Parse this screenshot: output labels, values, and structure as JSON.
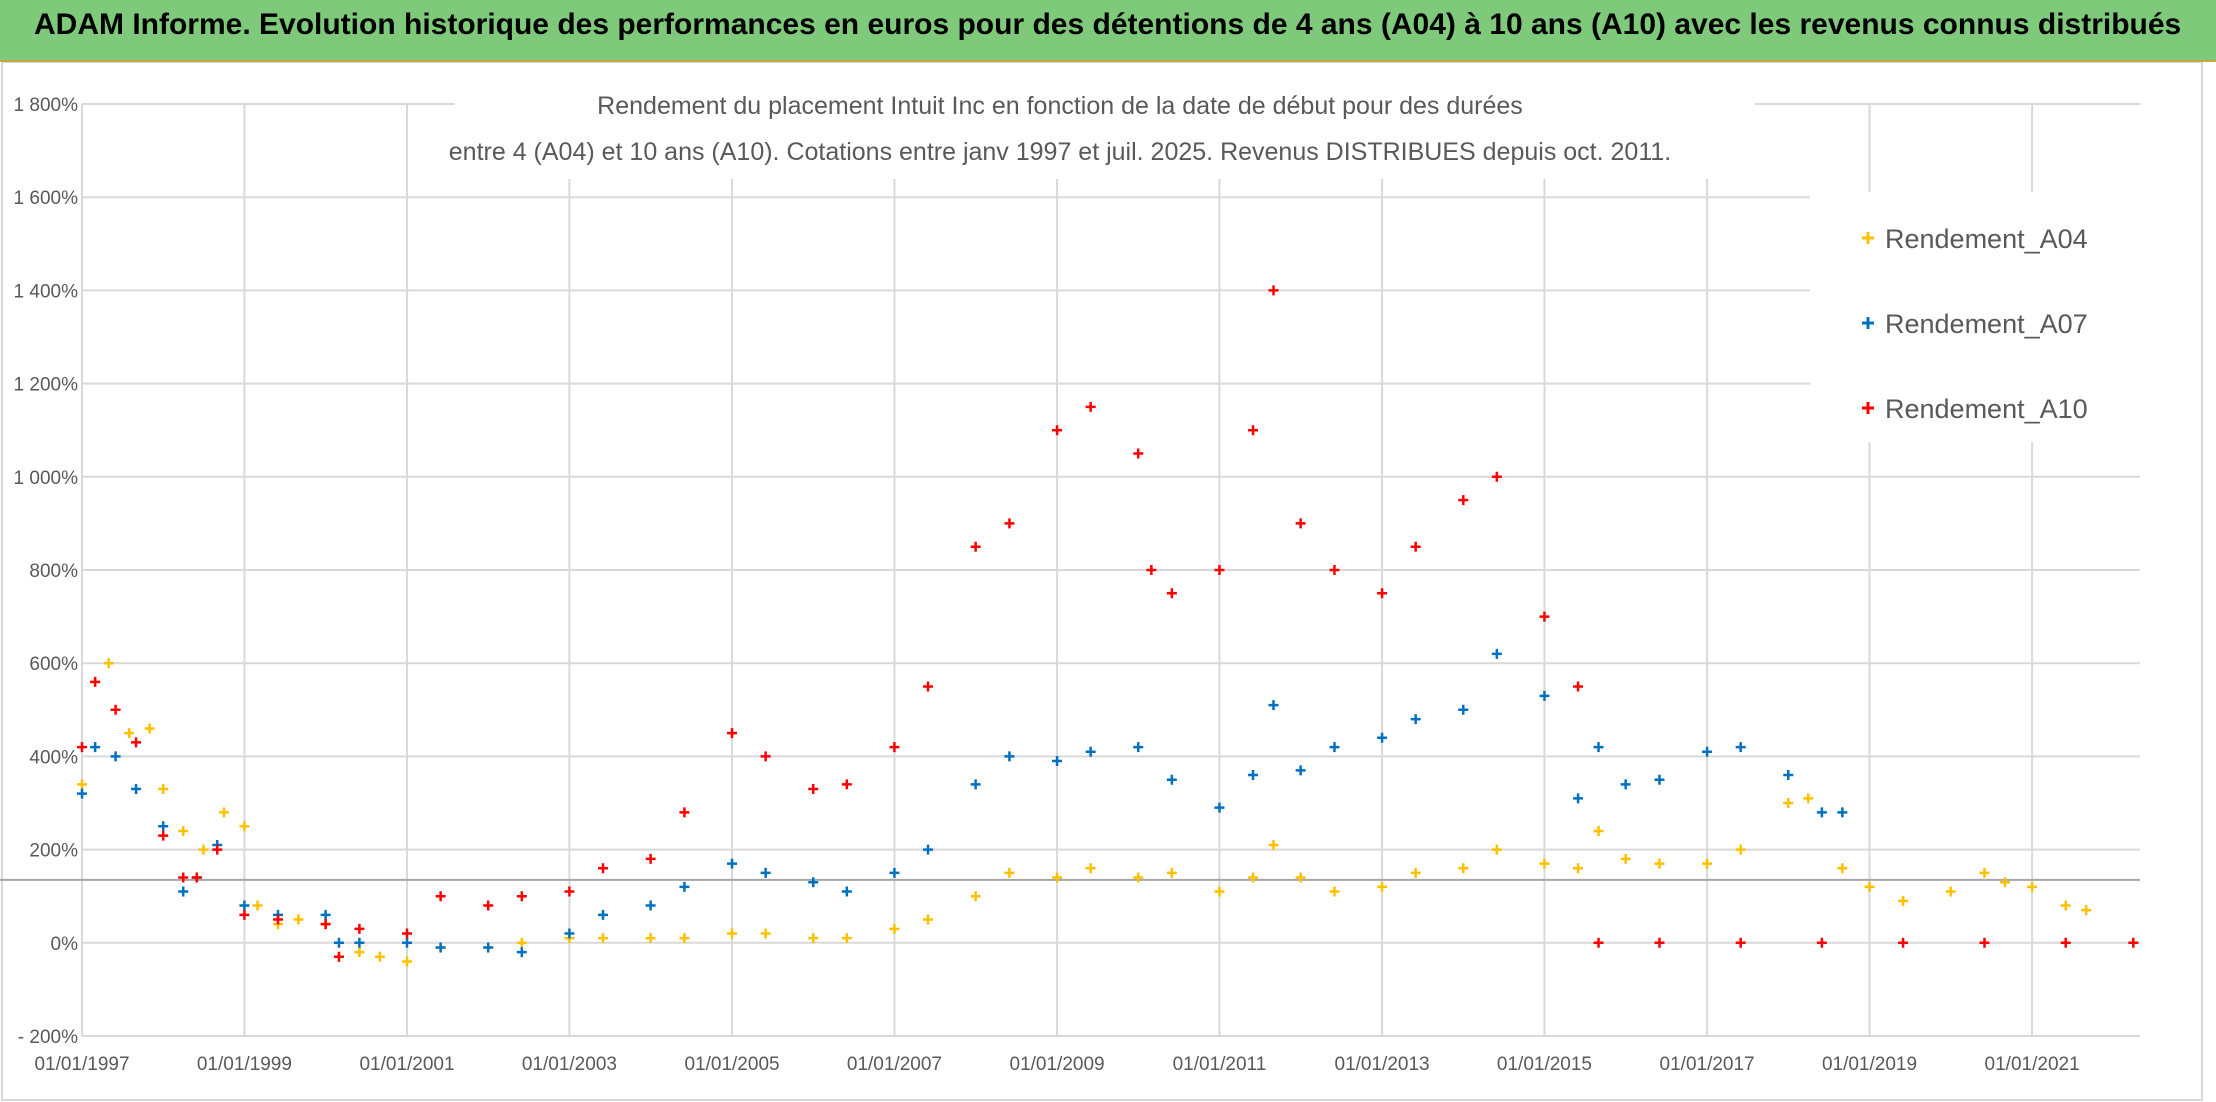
{
  "banner": {
    "title": "ADAM Informe. Evolution historique des performances en euros pour des détentions de 4 ans (A04) à 10 ans (A10) avec les revenus connus distribués",
    "background": "#7ec97a"
  },
  "chart_data": {
    "type": "scatter",
    "title_lines": [
      "Rendement du placement Intuit Inc en fonction de la date de début pour des durées",
      "entre 4 (A04) et 10 ans (A10). Cotations entre janv 1997 et juil. 2025. Revenus DISTRIBUES depuis oct. 2011."
    ],
    "x_range": [
      "1997-01-01",
      "2022-05-01"
    ],
    "x_tick_labels": [
      "01/01/1997",
      "01/01/1999",
      "01/01/2001",
      "01/01/2003",
      "01/01/2005",
      "01/01/2007",
      "01/01/2009",
      "01/01/2011",
      "01/01/2013",
      "01/01/2015",
      "01/01/2017",
      "01/01/2019",
      "01/01/2021"
    ],
    "y_range": [
      -200,
      1800
    ],
    "y_tick_labels": [
      "- 200%",
      "0%",
      "200%",
      "400%",
      "600%",
      "800%",
      "1 000%",
      "1 200%",
      "1 400%",
      "1 600%",
      "1 800%"
    ],
    "grid": true,
    "legend_position": "right",
    "reference_line_value": 135,
    "marker": "+",
    "series": [
      {
        "name": "Rendement_A04",
        "color": "#ffc000",
        "points": [
          [
            "1997-01-01",
            340
          ],
          [
            "1997-03-01",
            560
          ],
          [
            "1997-05-01",
            600
          ],
          [
            "1997-08-01",
            450
          ],
          [
            "1997-11-01",
            460
          ],
          [
            "1998-01-01",
            330
          ],
          [
            "1998-04-01",
            240
          ],
          [
            "1998-07-01",
            200
          ],
          [
            "1998-10-01",
            280
          ],
          [
            "1999-01-01",
            250
          ],
          [
            "1999-03-01",
            80
          ],
          [
            "1999-06-01",
            40
          ],
          [
            "1999-09-01",
            50
          ],
          [
            "2000-01-01",
            40
          ],
          [
            "2000-03-01",
            -30
          ],
          [
            "2000-06-01",
            -20
          ],
          [
            "2000-09-01",
            -30
          ],
          [
            "2001-01-01",
            -40
          ],
          [
            "2001-06-01",
            -10
          ],
          [
            "2002-01-01",
            -10
          ],
          [
            "2002-06-01",
            0
          ],
          [
            "2003-01-01",
            10
          ],
          [
            "2003-06-01",
            10
          ],
          [
            "2004-01-01",
            10
          ],
          [
            "2004-06-01",
            10
          ],
          [
            "2005-01-01",
            20
          ],
          [
            "2005-06-01",
            20
          ],
          [
            "2006-01-01",
            10
          ],
          [
            "2006-06-01",
            10
          ],
          [
            "2007-01-01",
            30
          ],
          [
            "2007-06-01",
            50
          ],
          [
            "2008-01-01",
            100
          ],
          [
            "2008-06-01",
            150
          ],
          [
            "2009-01-01",
            140
          ],
          [
            "2009-06-01",
            160
          ],
          [
            "2010-01-01",
            140
          ],
          [
            "2010-06-01",
            150
          ],
          [
            "2011-01-01",
            110
          ],
          [
            "2011-06-01",
            140
          ],
          [
            "2011-09-01",
            210
          ],
          [
            "2012-01-01",
            140
          ],
          [
            "2012-06-01",
            110
          ],
          [
            "2013-01-01",
            120
          ],
          [
            "2013-06-01",
            150
          ],
          [
            "2014-01-01",
            160
          ],
          [
            "2014-06-01",
            200
          ],
          [
            "2015-01-01",
            170
          ],
          [
            "2015-06-01",
            160
          ],
          [
            "2015-09-01",
            240
          ],
          [
            "2016-01-01",
            180
          ],
          [
            "2016-06-01",
            170
          ],
          [
            "2017-01-01",
            170
          ],
          [
            "2017-06-01",
            200
          ],
          [
            "2018-01-01",
            300
          ],
          [
            "2018-04-01",
            310
          ],
          [
            "2018-09-01",
            160
          ],
          [
            "2019-01-01",
            120
          ],
          [
            "2019-06-01",
            90
          ],
          [
            "2020-01-01",
            110
          ],
          [
            "2020-06-01",
            150
          ],
          [
            "2020-09-01",
            130
          ],
          [
            "2021-01-01",
            120
          ],
          [
            "2021-06-01",
            80
          ],
          [
            "2021-09-01",
            70
          ]
        ]
      },
      {
        "name": "Rendement_A07",
        "color": "#0070c0",
        "points": [
          [
            "1997-01-01",
            320
          ],
          [
            "1997-03-01",
            420
          ],
          [
            "1997-06-01",
            400
          ],
          [
            "1997-09-01",
            330
          ],
          [
            "1998-01-01",
            250
          ],
          [
            "1998-04-01",
            110
          ],
          [
            "1998-06-01",
            140
          ],
          [
            "1998-09-01",
            210
          ],
          [
            "1999-01-01",
            80
          ],
          [
            "1999-06-01",
            60
          ],
          [
            "2000-01-01",
            60
          ],
          [
            "2000-03-01",
            0
          ],
          [
            "2000-06-01",
            0
          ],
          [
            "2001-01-01",
            0
          ],
          [
            "2001-06-01",
            -10
          ],
          [
            "2002-01-01",
            -10
          ],
          [
            "2002-06-01",
            -20
          ],
          [
            "2003-01-01",
            20
          ],
          [
            "2003-06-01",
            60
          ],
          [
            "2004-01-01",
            80
          ],
          [
            "2004-06-01",
            120
          ],
          [
            "2005-01-01",
            170
          ],
          [
            "2005-06-01",
            150
          ],
          [
            "2006-01-01",
            130
          ],
          [
            "2006-06-01",
            110
          ],
          [
            "2007-01-01",
            150
          ],
          [
            "2007-06-01",
            200
          ],
          [
            "2008-01-01",
            340
          ],
          [
            "2008-06-01",
            400
          ],
          [
            "2009-01-01",
            390
          ],
          [
            "2009-06-01",
            410
          ],
          [
            "2010-01-01",
            420
          ],
          [
            "2010-06-01",
            350
          ],
          [
            "2011-01-01",
            290
          ],
          [
            "2011-06-01",
            360
          ],
          [
            "2011-09-01",
            510
          ],
          [
            "2012-01-01",
            370
          ],
          [
            "2012-06-01",
            420
          ],
          [
            "2013-01-01",
            440
          ],
          [
            "2013-06-01",
            480
          ],
          [
            "2014-01-01",
            500
          ],
          [
            "2014-06-01",
            620
          ],
          [
            "2015-01-01",
            530
          ],
          [
            "2015-06-01",
            310
          ],
          [
            "2015-09-01",
            420
          ],
          [
            "2016-01-01",
            340
          ],
          [
            "2016-06-01",
            350
          ],
          [
            "2017-01-01",
            410
          ],
          [
            "2017-06-01",
            420
          ],
          [
            "2018-01-01",
            360
          ],
          [
            "2018-06-01",
            280
          ],
          [
            "2018-09-01",
            280
          ]
        ]
      },
      {
        "name": "Rendement_A10",
        "color": "#ff0000",
        "points": [
          [
            "1997-01-01",
            420
          ],
          [
            "1997-03-01",
            560
          ],
          [
            "1997-06-01",
            500
          ],
          [
            "1997-09-01",
            430
          ],
          [
            "1998-01-01",
            230
          ],
          [
            "1998-04-01",
            140
          ],
          [
            "1998-06-01",
            140
          ],
          [
            "1998-09-01",
            200
          ],
          [
            "1999-01-01",
            60
          ],
          [
            "1999-06-01",
            50
          ],
          [
            "2000-01-01",
            40
          ],
          [
            "2000-03-01",
            -30
          ],
          [
            "2000-06-01",
            30
          ],
          [
            "2001-01-01",
            20
          ],
          [
            "2001-06-01",
            100
          ],
          [
            "2002-01-01",
            80
          ],
          [
            "2002-06-01",
            100
          ],
          [
            "2003-01-01",
            110
          ],
          [
            "2003-06-01",
            160
          ],
          [
            "2004-01-01",
            180
          ],
          [
            "2004-06-01",
            280
          ],
          [
            "2005-01-01",
            450
          ],
          [
            "2005-06-01",
            400
          ],
          [
            "2006-01-01",
            330
          ],
          [
            "2006-06-01",
            340
          ],
          [
            "2007-01-01",
            420
          ],
          [
            "2007-06-01",
            550
          ],
          [
            "2008-01-01",
            850
          ],
          [
            "2008-06-01",
            900
          ],
          [
            "2009-01-01",
            1100
          ],
          [
            "2009-06-01",
            1150
          ],
          [
            "2010-01-01",
            1050
          ],
          [
            "2010-03-01",
            800
          ],
          [
            "2010-06-01",
            750
          ],
          [
            "2011-01-01",
            800
          ],
          [
            "2011-06-01",
            1100
          ],
          [
            "2011-09-01",
            1400
          ],
          [
            "2012-01-01",
            900
          ],
          [
            "2012-06-01",
            800
          ],
          [
            "2013-01-01",
            750
          ],
          [
            "2013-06-01",
            850
          ],
          [
            "2014-01-01",
            950
          ],
          [
            "2014-06-01",
            1000
          ],
          [
            "2015-01-01",
            700
          ],
          [
            "2015-06-01",
            550
          ],
          [
            "2015-09-01",
            0
          ],
          [
            "2016-06-01",
            0
          ],
          [
            "2017-06-01",
            0
          ],
          [
            "2018-06-01",
            0
          ],
          [
            "2019-06-01",
            0
          ],
          [
            "2020-06-01",
            0
          ],
          [
            "2021-06-01",
            0
          ],
          [
            "2022-04-01",
            0
          ]
        ]
      }
    ]
  }
}
